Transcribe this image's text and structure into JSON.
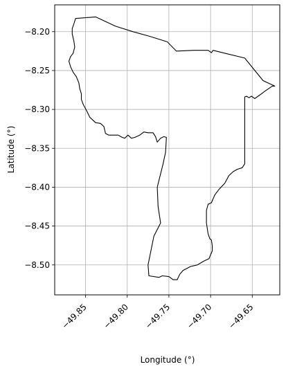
{
  "chart_data": {
    "type": "map-outline",
    "title": "",
    "xlabel": "Longitude (°)",
    "ylabel": "Latitude (°)",
    "xlim": [
      -49.887,
      -49.617
    ],
    "ylim": [
      -8.5385,
      -8.1655
    ],
    "xticks": [
      {
        "value": -49.85,
        "label": "−49.85"
      },
      {
        "value": -49.8,
        "label": "−49.80"
      },
      {
        "value": -49.75,
        "label": "−49.75"
      },
      {
        "value": -49.7,
        "label": "−49.70"
      },
      {
        "value": -49.65,
        "label": "−49.65"
      }
    ],
    "yticks": [
      {
        "value": -8.2,
        "label": "−8.20"
      },
      {
        "value": -8.25,
        "label": "−8.25"
      },
      {
        "value": -8.3,
        "label": "−8.30"
      },
      {
        "value": -8.35,
        "label": "−8.35"
      },
      {
        "value": -8.4,
        "label": "−8.40"
      },
      {
        "value": -8.45,
        "label": "−8.45"
      },
      {
        "value": -8.5,
        "label": "−8.50"
      }
    ],
    "grid": true,
    "colors": {
      "outline": "#000000",
      "grid": "#b0b0b0",
      "frame": "#000000"
    },
    "outline": [
      [
        -49.838,
        -8.181
      ],
      [
        -49.814,
        -8.193
      ],
      [
        -49.793,
        -8.2
      ],
      [
        -49.773,
        -8.206
      ],
      [
        -49.752,
        -8.213
      ],
      [
        -49.741,
        -8.225
      ],
      [
        -49.72,
        -8.224
      ],
      [
        -49.703,
        -8.224
      ],
      [
        -49.699,
        -8.227
      ],
      [
        -49.697,
        -8.224
      ],
      [
        -49.682,
        -8.228
      ],
      [
        -49.659,
        -8.234
      ],
      [
        -49.637,
        -8.263
      ],
      [
        -49.623,
        -8.27
      ],
      [
        -49.626,
        -8.27
      ],
      [
        -49.634,
        -8.276
      ],
      [
        -49.639,
        -8.28
      ],
      [
        -49.643,
        -8.283
      ],
      [
        -49.647,
        -8.286
      ],
      [
        -49.651,
        -8.283
      ],
      [
        -49.654,
        -8.285
      ],
      [
        -49.657,
        -8.283
      ],
      [
        -49.659,
        -8.284
      ],
      [
        -49.659,
        -8.3
      ],
      [
        -49.659,
        -8.33
      ],
      [
        -49.659,
        -8.35
      ],
      [
        -49.659,
        -8.37
      ],
      [
        -49.662,
        -8.375
      ],
      [
        -49.668,
        -8.377
      ],
      [
        -49.673,
        -8.38
      ],
      [
        -49.678,
        -8.385
      ],
      [
        -49.683,
        -8.395
      ],
      [
        -49.69,
        -8.403
      ],
      [
        -49.695,
        -8.41
      ],
      [
        -49.699,
        -8.42
      ],
      [
        -49.703,
        -8.422
      ],
      [
        -49.705,
        -8.43
      ],
      [
        -49.705,
        -8.446
      ],
      [
        -49.703,
        -8.46
      ],
      [
        -49.701,
        -8.466
      ],
      [
        -49.699,
        -8.468
      ],
      [
        -49.698,
        -8.475
      ],
      [
        -49.698,
        -8.482
      ],
      [
        -49.702,
        -8.492
      ],
      [
        -49.708,
        -8.495
      ],
      [
        -49.716,
        -8.5
      ],
      [
        -49.724,
        -8.502
      ],
      [
        -49.733,
        -8.507
      ],
      [
        -49.737,
        -8.512
      ],
      [
        -49.74,
        -8.519
      ],
      [
        -49.745,
        -8.519
      ],
      [
        -49.75,
        -8.515
      ],
      [
        -49.758,
        -8.514
      ],
      [
        -49.762,
        -8.516
      ],
      [
        -49.774,
        -8.514
      ],
      [
        -49.775,
        -8.5
      ],
      [
        -49.768,
        -8.463
      ],
      [
        -49.76,
        -8.446
      ],
      [
        -49.763,
        -8.425
      ],
      [
        -49.764,
        -8.4
      ],
      [
        -49.757,
        -8.37
      ],
      [
        -49.754,
        -8.355
      ],
      [
        -49.753,
        -8.336
      ],
      [
        -49.756,
        -8.335
      ],
      [
        -49.76,
        -8.337
      ],
      [
        -49.764,
        -8.342
      ],
      [
        -49.766,
        -8.335
      ],
      [
        -49.769,
        -8.33
      ],
      [
        -49.775,
        -8.33
      ],
      [
        -49.78,
        -8.329
      ],
      [
        -49.785,
        -8.333
      ],
      [
        -49.791,
        -8.336
      ],
      [
        -49.795,
        -8.337
      ],
      [
        -49.799,
        -8.333
      ],
      [
        -49.803,
        -8.337
      ],
      [
        -49.806,
        -8.336
      ],
      [
        -49.811,
        -8.333
      ],
      [
        -49.817,
        -8.333
      ],
      [
        -49.822,
        -8.333
      ],
      [
        -49.826,
        -8.331
      ],
      [
        -49.828,
        -8.322
      ],
      [
        -49.832,
        -8.318
      ],
      [
        -49.838,
        -8.317
      ],
      [
        -49.842,
        -8.313
      ],
      [
        -49.845,
        -8.31
      ],
      [
        -49.848,
        -8.303
      ],
      [
        -49.851,
        -8.297
      ],
      [
        -49.853,
        -8.293
      ],
      [
        -49.855,
        -8.287
      ],
      [
        -49.855,
        -8.28
      ],
      [
        -49.857,
        -8.273
      ],
      [
        -49.858,
        -8.266
      ],
      [
        -49.861,
        -8.258
      ],
      [
        -49.865,
        -8.252
      ],
      [
        -49.868,
        -8.245
      ],
      [
        -49.87,
        -8.238
      ],
      [
        -49.868,
        -8.232
      ],
      [
        -49.865,
        -8.228
      ],
      [
        -49.863,
        -8.22
      ],
      [
        -49.864,
        -8.212
      ],
      [
        -49.866,
        -8.203
      ],
      [
        -49.866,
        -8.196
      ],
      [
        -49.864,
        -8.19
      ],
      [
        -49.862,
        -8.183
      ],
      [
        -49.838,
        -8.181
      ]
    ]
  }
}
